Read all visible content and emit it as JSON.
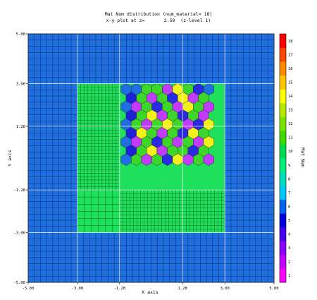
{
  "chart_data": {
    "type": "heatmap",
    "title": "Mat Num distribution (num_material= 18)",
    "subtitle": "x-y plot at z=       2.50  (z-level 1)",
    "xlabel": "X axis",
    "ylabel": "Y axis",
    "xlim": [
      -5.0,
      5.0
    ],
    "ylim": [
      -5.0,
      5.0
    ],
    "x_ticks": [
      "-5.00",
      "-3.00",
      "-1.28",
      "1.28",
      "3.00",
      "5.00"
    ],
    "y_ticks": [
      "5.00",
      "3.00",
      "1.28",
      "-1.28",
      "-3.00",
      "-5.00"
    ],
    "colorbar": {
      "label": "Mat Num",
      "min": 1,
      "max": 18,
      "ticks": [
        "18",
        "17",
        "16",
        "15",
        "14",
        "13",
        "12",
        "11",
        "10",
        "9",
        "8",
        "7",
        "6",
        "5",
        "4",
        "3",
        "2",
        "1"
      ]
    },
    "regions": [
      {
        "material": 6,
        "x": [
          -5.0,
          5.0
        ],
        "y": [
          -5.0,
          5.0
        ]
      },
      {
        "material": 10,
        "x": [
          -3.0,
          3.0
        ],
        "y": [
          -3.0,
          3.0
        ]
      }
    ],
    "hex_lattice": {
      "x": [
        -1.28,
        3.0
      ],
      "y": [
        -0.2,
        3.0
      ],
      "materials_by_row": [
        [
          6,
          6,
          11,
          11,
          3,
          14,
          11,
          5,
          6
        ],
        [
          4,
          11,
          3,
          11,
          5,
          14,
          3,
          11
        ],
        [
          6,
          3,
          11,
          5,
          11,
          3,
          14,
          11,
          3
        ],
        [
          4,
          11,
          14,
          3,
          11,
          5,
          11,
          3
        ],
        [
          6,
          11,
          3,
          11,
          14,
          11,
          3,
          5,
          14
        ],
        [
          4,
          14,
          11,
          3,
          11,
          5,
          14,
          11
        ],
        [
          6,
          3,
          11,
          5,
          11,
          3,
          11,
          3,
          14
        ],
        [
          4,
          11,
          14,
          3,
          11,
          11,
          5,
          11
        ],
        [
          6,
          11,
          3,
          11,
          5,
          14,
          3,
          11,
          3
        ]
      ]
    }
  }
}
